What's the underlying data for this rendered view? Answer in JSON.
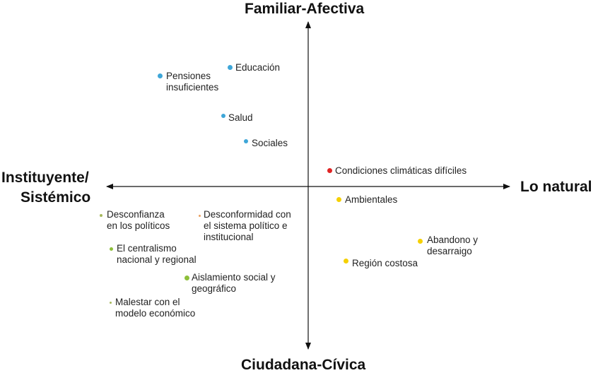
{
  "axes": {
    "top": "Familiar-Afectiva",
    "bottom": "Ciudadana-Cívica",
    "left_line1": "Instituyente/",
    "left_line2": "Sistémico",
    "right": "Lo natural"
  },
  "colors": {
    "blue": "#3ea6d8",
    "red": "#e02424",
    "yellow": "#f5d000",
    "green": "#8dbf3a",
    "green_small": "#a6b85c",
    "orange_small": "#e9a060"
  },
  "items": [
    {
      "lines": [
        "Educación"
      ],
      "color": "#3ea6d8"
    },
    {
      "lines": [
        "Pensiones",
        "insuficientes"
      ],
      "color": "#3ea6d8"
    },
    {
      "lines": [
        "Salud"
      ],
      "color": "#3ea6d8"
    },
    {
      "lines": [
        "Sociales"
      ],
      "color": "#3ea6d8"
    },
    {
      "lines": [
        "Condiciones climáticas difíciles"
      ],
      "color": "#e02424"
    },
    {
      "lines": [
        "Ambientales"
      ],
      "color": "#f5d000"
    },
    {
      "lines": [
        "Abandono y",
        "desarraigo"
      ],
      "color": "#f5d000"
    },
    {
      "lines": [
        "Región costosa"
      ],
      "color": "#f5d000"
    },
    {
      "lines": [
        "Desconfianza",
        "en los políticos"
      ],
      "color": "#a6b85c"
    },
    {
      "lines": [
        "Desconformidad con",
        "el sistema político e",
        "institucional"
      ],
      "color": "#e9a060"
    },
    {
      "lines": [
        "El centralismo",
        "nacional y regional"
      ],
      "color": "#8dbf3a"
    },
    {
      "lines": [
        "Aislamiento social y",
        "geográfico"
      ],
      "color": "#8dbf3a"
    },
    {
      "lines": [
        "Malestar con el",
        "modelo económico"
      ],
      "color": "#a6b85c"
    }
  ]
}
